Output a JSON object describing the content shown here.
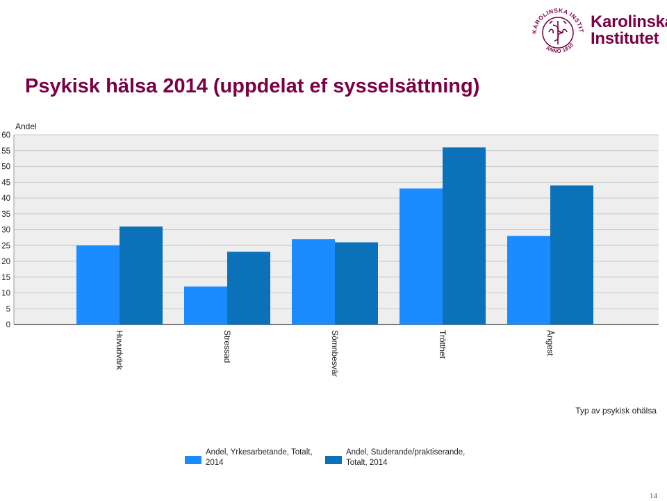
{
  "slide": {
    "title": "Psykisk hälsa 2014 (uppdelat ef sysselsättning)",
    "page_number": "14"
  },
  "logo": {
    "line1": "Karolinska",
    "line2": "Institutet",
    "seal_text": "KAROLINSKA INSTITUTET",
    "seal_year": "ANNO 1810",
    "color": "#7a0043"
  },
  "chart_data": {
    "type": "bar",
    "categories": [
      "Huvudvärk",
      "Stressad",
      "Sömnbesvär",
      "Trötthet",
      "Ångest"
    ],
    "series": [
      {
        "name": "Andel, Yrkesarbetande, Totalt, 2014",
        "values": [
          25,
          12,
          27,
          43,
          28
        ],
        "color": "#1a8cff"
      },
      {
        "name": "Andel, Studerande/praktiserande, Totalt, 2014",
        "values": [
          31,
          23,
          26,
          56,
          44
        ],
        "color": "#0b72b9"
      }
    ],
    "ylabel": "Andel",
    "xlabel": "Typ av psykisk ohälsa",
    "ylim": [
      0,
      60
    ],
    "yticks": [
      0,
      5,
      10,
      15,
      20,
      25,
      30,
      35,
      40,
      45,
      50,
      55,
      60
    ],
    "grid": true,
    "legend_position": "bottom"
  }
}
